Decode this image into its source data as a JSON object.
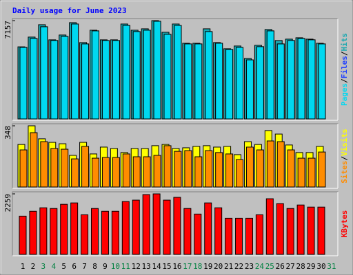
{
  "title": "Daily usage for June 2023",
  "legend_separator": "/",
  "chart_data": [
    {
      "type": "bar",
      "ylim": [
        0,
        7157
      ],
      "yticks": [
        7157
      ],
      "series": [
        {
          "name": "Hits",
          "color": "#1aa8b0",
          "values": [
            5250,
            5960,
            6860,
            5760,
            6110,
            7010,
            5560,
            6460,
            5760,
            5760,
            6910,
            6460,
            6560,
            7157,
            6310,
            6910,
            5510,
            5510,
            6560,
            5560,
            5110,
            5310,
            4400,
            5360,
            6510,
            5710,
            5810,
            5910,
            5810,
            5510,
            null
          ]
        },
        {
          "name": "Files",
          "color": "#2040ff",
          "values": [
            5210,
            5860,
            6710,
            5710,
            6010,
            6910,
            5460,
            6410,
            5710,
            5710,
            6810,
            6360,
            6460,
            7110,
            6160,
            6810,
            5460,
            5460,
            6360,
            5510,
            5060,
            5210,
            4300,
            5260,
            6410,
            5460,
            5710,
            5860,
            5760,
            5460,
            null
          ]
        },
        {
          "name": "Pages",
          "color": "#00d8f0",
          "values": [
            5210,
            5860,
            6710,
            5710,
            6010,
            6910,
            5460,
            6410,
            5710,
            5710,
            6810,
            6360,
            6460,
            7110,
            6160,
            6810,
            5460,
            5460,
            6360,
            5510,
            5060,
            5210,
            4300,
            5260,
            6410,
            5460,
            5710,
            5860,
            5760,
            5460,
            null
          ]
        }
      ]
    },
    {
      "type": "bar",
      "ylim": [
        0,
        348
      ],
      "yticks": [
        348
      ],
      "series": [
        {
          "name": "Visits",
          "color": "#ffff00",
          "values": [
            242,
            348,
            274,
            254,
            246,
            180,
            254,
            188,
            227,
            219,
            196,
            219,
            219,
            235,
            242,
            219,
            223,
            231,
            235,
            227,
            231,
            184,
            258,
            242,
            321,
            301,
            239,
            196,
            196,
            231,
            null
          ]
        },
        {
          "name": "Sites",
          "color": "#ff8c00",
          "values": [
            211,
            309,
            258,
            219,
            215,
            160,
            231,
            164,
            168,
            168,
            188,
            172,
            172,
            180,
            235,
            203,
            207,
            172,
            207,
            196,
            188,
            156,
            227,
            211,
            262,
            258,
            211,
            164,
            164,
            199,
            null
          ]
        }
      ]
    },
    {
      "type": "bar",
      "ylim": [
        0,
        2259
      ],
      "yticks": [
        2259
      ],
      "series": [
        {
          "name": "KBytes",
          "color": "#ff0000",
          "values": [
            1428,
            1610,
            1740,
            1714,
            1870,
            1922,
            1480,
            1714,
            1610,
            1610,
            1974,
            2026,
            2233,
            2259,
            2026,
            2130,
            1714,
            1506,
            1922,
            1740,
            1350,
            1350,
            1350,
            1480,
            2078,
            1896,
            1714,
            1844,
            1766,
            1766,
            null
          ]
        }
      ],
      "categories": [
        "1",
        "2",
        "3",
        "4",
        "5",
        "6",
        "7",
        "8",
        "9",
        "10",
        "11",
        "12",
        "13",
        "14",
        "15",
        "16",
        "17",
        "18",
        "19",
        "20",
        "21",
        "22",
        "23",
        "24",
        "25",
        "26",
        "27",
        "28",
        "29",
        "30",
        "31"
      ],
      "category_colors": [
        "#000",
        "#000",
        "#008040",
        "#008040",
        "#000",
        "#000",
        "#000",
        "#000",
        "#000",
        "#008040",
        "#008040",
        "#000",
        "#000",
        "#000",
        "#000",
        "#000",
        "#008040",
        "#008040",
        "#000",
        "#000",
        "#000",
        "#000",
        "#000",
        "#008040",
        "#008040",
        "#000",
        "#000",
        "#000",
        "#000",
        "#000",
        "#008040"
      ]
    }
  ]
}
